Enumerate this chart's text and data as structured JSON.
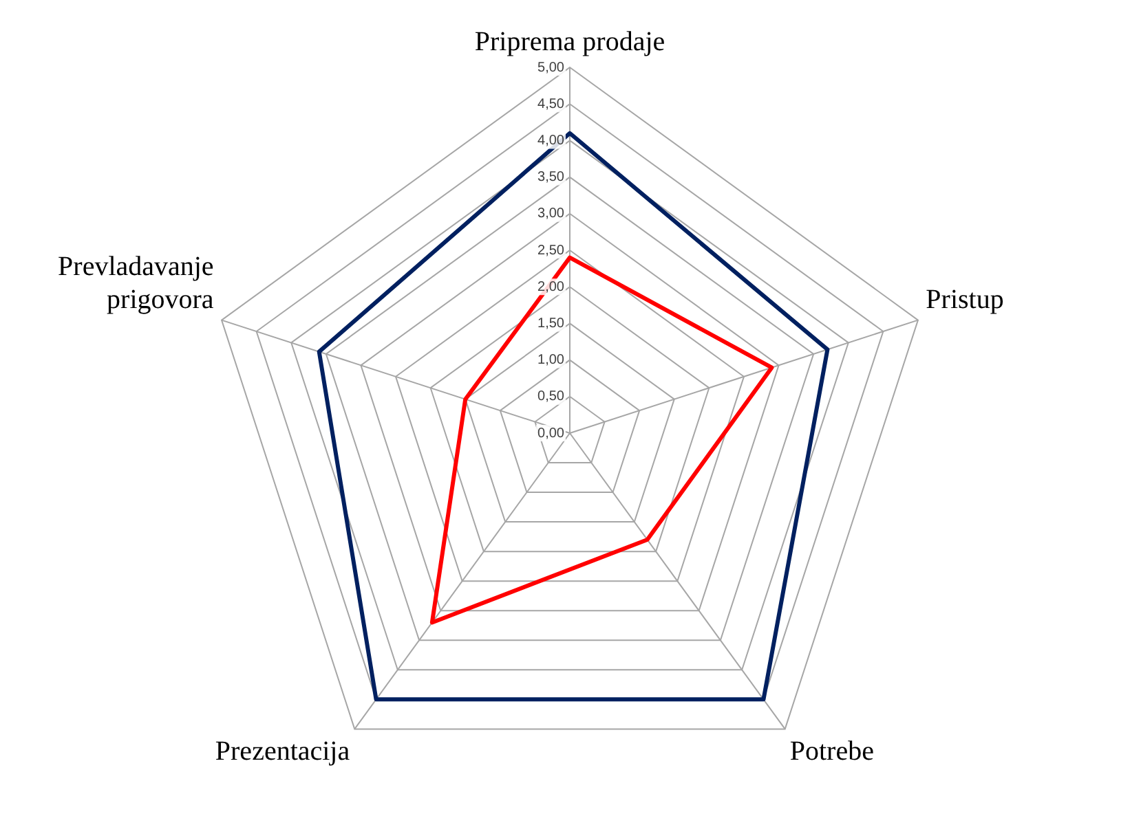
{
  "chart_data": {
    "type": "radar",
    "categories": [
      "Priprema prodaje",
      "Pristup",
      "Potrebe",
      "Prezentacija",
      "Prevladavanje prigovora"
    ],
    "series": [
      {
        "color": "#002060",
        "values": [
          4.1,
          3.7,
          4.5,
          4.5,
          3.6
        ]
      },
      {
        "color": "#ff0000",
        "values": [
          2.4,
          2.9,
          1.8,
          3.2,
          1.5
        ]
      }
    ],
    "ylim": [
      0,
      5
    ],
    "yticks": [
      {
        "value": 0,
        "label": "0,00"
      },
      {
        "value": 0.5,
        "label": "0,50"
      },
      {
        "value": 1,
        "label": "1,00"
      },
      {
        "value": 1.5,
        "label": "1,50"
      },
      {
        "value": 2,
        "label": "2,00"
      },
      {
        "value": 2.5,
        "label": "2,50"
      },
      {
        "value": 3,
        "label": "3,00"
      },
      {
        "value": 3.5,
        "label": "3,50"
      },
      {
        "value": 4,
        "label": "4,00"
      },
      {
        "value": 4.5,
        "label": "4,50"
      },
      {
        "value": 5,
        "label": "5,00"
      }
    ],
    "grid": true,
    "legend": false,
    "marker": "none"
  }
}
